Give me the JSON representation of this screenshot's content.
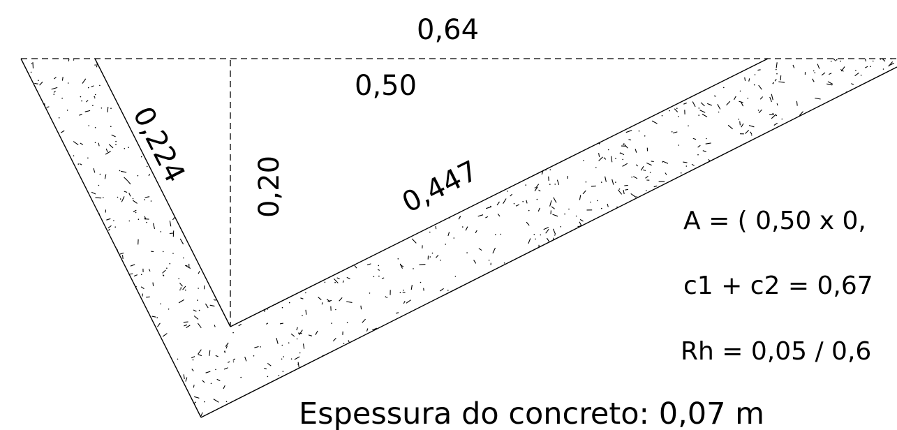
{
  "dimensions": {
    "top_width": "0,64",
    "water_width": "0,50",
    "left_side": "0,224",
    "depth": "0,20",
    "right_side": "0,447"
  },
  "formulas": {
    "area": "A = ( 0,50 x 0,",
    "perimeter": "c1 + c2 = 0,67",
    "hydraulic_radius": "Rh = 0,05 / 0,6"
  },
  "note": "Espessura do concreto: 0,07 m",
  "colors": {
    "line": "#000000",
    "background": "#ffffff"
  }
}
